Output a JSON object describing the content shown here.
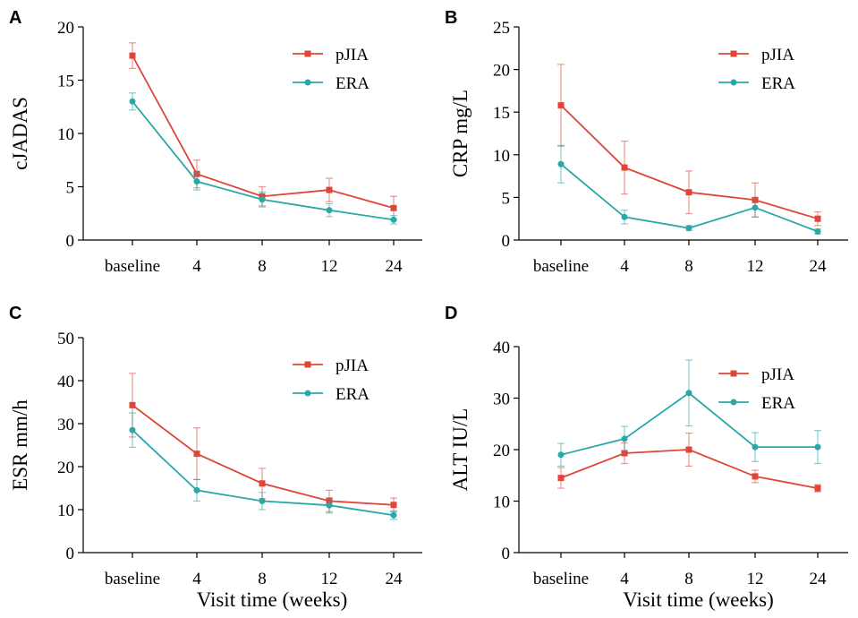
{
  "colors": {
    "pjia": "#e0453a",
    "era": "#2aa8a8",
    "axis": "#000000"
  },
  "shared": {
    "xlabel": "Visit time (weeks)",
    "categories": [
      "baseline",
      "4",
      "8",
      "12",
      "24"
    ]
  },
  "chart_data": [
    {
      "panel": "A",
      "type": "line",
      "ylabel": "cJADAS",
      "ylim": [
        0,
        20
      ],
      "yticks": [
        0,
        5,
        10,
        15,
        20
      ],
      "categories": [
        "baseline",
        "4",
        "8",
        "12",
        "24"
      ],
      "xlabel": "",
      "series": [
        {
          "name": "pJIA",
          "marker": "square",
          "values": [
            17.3,
            6.2,
            4.1,
            4.7,
            3.0
          ],
          "err": [
            1.2,
            1.3,
            0.9,
            1.1,
            1.1
          ]
        },
        {
          "name": "ERA",
          "marker": "circle",
          "values": [
            13.0,
            5.5,
            3.8,
            2.8,
            1.9
          ],
          "err": [
            0.8,
            0.8,
            0.7,
            0.6,
            0.4
          ]
        }
      ],
      "legend": "top-right"
    },
    {
      "panel": "B",
      "type": "line",
      "ylabel": "CRP mg/L",
      "ylim": [
        0,
        25
      ],
      "yticks": [
        0,
        5,
        10,
        15,
        20,
        25
      ],
      "categories": [
        "baseline",
        "4",
        "8",
        "12",
        "24"
      ],
      "xlabel": "",
      "series": [
        {
          "name": "pJIA",
          "marker": "square",
          "values": [
            15.8,
            8.5,
            5.6,
            4.7,
            2.5
          ],
          "err": [
            4.8,
            3.1,
            2.5,
            2.0,
            0.8
          ]
        },
        {
          "name": "ERA",
          "marker": "circle",
          "values": [
            8.9,
            2.7,
            1.4,
            3.8,
            1.0
          ],
          "err": [
            2.2,
            0.8,
            0.3,
            1.1,
            0.3
          ]
        }
      ],
      "legend": "top-right"
    },
    {
      "panel": "C",
      "type": "line",
      "ylabel": "ESR mm/h",
      "ylim": [
        0,
        50
      ],
      "yticks": [
        0,
        10,
        20,
        30,
        40,
        50
      ],
      "categories": [
        "baseline",
        "4",
        "8",
        "12",
        "24"
      ],
      "xlabel": "Visit time (weeks)",
      "series": [
        {
          "name": "pJIA",
          "marker": "square",
          "values": [
            34.3,
            23.0,
            16.1,
            12.0,
            11.1
          ],
          "err": [
            7.4,
            6.0,
            3.5,
            2.5,
            1.6
          ]
        },
        {
          "name": "ERA",
          "marker": "circle",
          "values": [
            28.5,
            14.5,
            12.0,
            11.0,
            8.7
          ],
          "err": [
            4.0,
            2.5,
            2.0,
            1.8,
            1.0
          ]
        }
      ],
      "legend": "top-right"
    },
    {
      "panel": "D",
      "type": "line",
      "ylabel": "ALT IU/L",
      "ylim": [
        0,
        40
      ],
      "yticks": [
        0,
        10,
        20,
        30,
        40
      ],
      "categories": [
        "baseline",
        "4",
        "8",
        "12",
        "24"
      ],
      "xlabel": "Visit time (weeks)",
      "series": [
        {
          "name": "pJIA",
          "marker": "square",
          "values": [
            14.5,
            19.3,
            20.0,
            14.8,
            12.5
          ],
          "err": [
            2.0,
            2.0,
            3.2,
            1.2,
            0.7
          ]
        },
        {
          "name": "ERA",
          "marker": "circle",
          "values": [
            19.0,
            22.1,
            31.0,
            20.5,
            20.5
          ],
          "err": [
            2.2,
            2.4,
            6.4,
            2.8,
            3.2
          ]
        }
      ],
      "legend": "top-right"
    }
  ]
}
